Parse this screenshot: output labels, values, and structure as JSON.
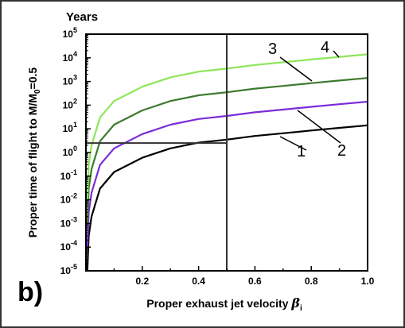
{
  "chart_data": {
    "type": "line",
    "title": "",
    "xlabel": "Proper exhaust jet velocity",
    "xlabel_symbol": "β",
    "xlabel_subscript": "i",
    "ylabel_prefix": "Proper time of flight to M/M",
    "ylabel_subscript": "0",
    "ylabel_suffix": "=0.5",
    "y_unit": "Years",
    "panel_label": "b)",
    "xlim": [
      0.0,
      1.0
    ],
    "ylim_exp": [
      -5,
      5
    ],
    "y_scale": "log",
    "x_ticks": [
      "0.2",
      "0.4",
      "0.6",
      "0.8",
      "1.0"
    ],
    "x_tick_values": [
      0.2,
      0.4,
      0.6,
      0.8,
      1.0
    ],
    "y_tick_exponents": [
      -5,
      -4,
      -3,
      -2,
      -1,
      0,
      1,
      2,
      3,
      4,
      5
    ],
    "y_tick_base": "10",
    "grid": false,
    "series": [
      {
        "name": "1",
        "color": "#000000",
        "x": [
          0.005,
          0.01,
          0.02,
          0.05,
          0.1,
          0.2,
          0.3,
          0.4,
          0.5,
          0.6,
          0.7,
          0.8,
          0.9,
          1.0
        ],
        "y": [
          1e-05,
          0.0003,
          0.002,
          0.03,
          0.15,
          0.6,
          1.5,
          2.6,
          3.5,
          5,
          6.5,
          8.5,
          11,
          14
        ]
      },
      {
        "name": "2",
        "color": "#7b2bd9",
        "x": [
          0.005,
          0.01,
          0.02,
          0.05,
          0.1,
          0.2,
          0.3,
          0.4,
          0.5,
          0.6,
          0.7,
          0.8,
          0.9,
          1.0
        ],
        "y": [
          0.0001,
          0.003,
          0.02,
          0.3,
          1.5,
          6,
          15,
          26,
          35,
          50,
          65,
          85,
          110,
          140
        ]
      },
      {
        "name": "3",
        "color": "#3d7a2e",
        "x": [
          0.005,
          0.01,
          0.02,
          0.05,
          0.1,
          0.2,
          0.3,
          0.4,
          0.5,
          0.6,
          0.7,
          0.8,
          0.9,
          1.0
        ],
        "y": [
          0.001,
          0.03,
          0.2,
          3,
          15,
          60,
          150,
          260,
          350,
          500,
          650,
          850,
          1100,
          1400
        ]
      },
      {
        "name": "4",
        "color": "#8ee65a",
        "x": [
          0.005,
          0.01,
          0.02,
          0.05,
          0.1,
          0.2,
          0.3,
          0.4,
          0.5,
          0.6,
          0.7,
          0.8,
          0.9,
          1.0
        ],
        "y": [
          0.01,
          0.3,
          2,
          30,
          150,
          600,
          1500,
          2600,
          3500,
          5000,
          6500,
          8500,
          11000,
          14000
        ]
      }
    ],
    "annotations": {
      "vertical_line_x": 0.5,
      "horizontal_line": {
        "x_start": 0.0,
        "x_end": 0.5,
        "y": 2.5
      }
    }
  }
}
